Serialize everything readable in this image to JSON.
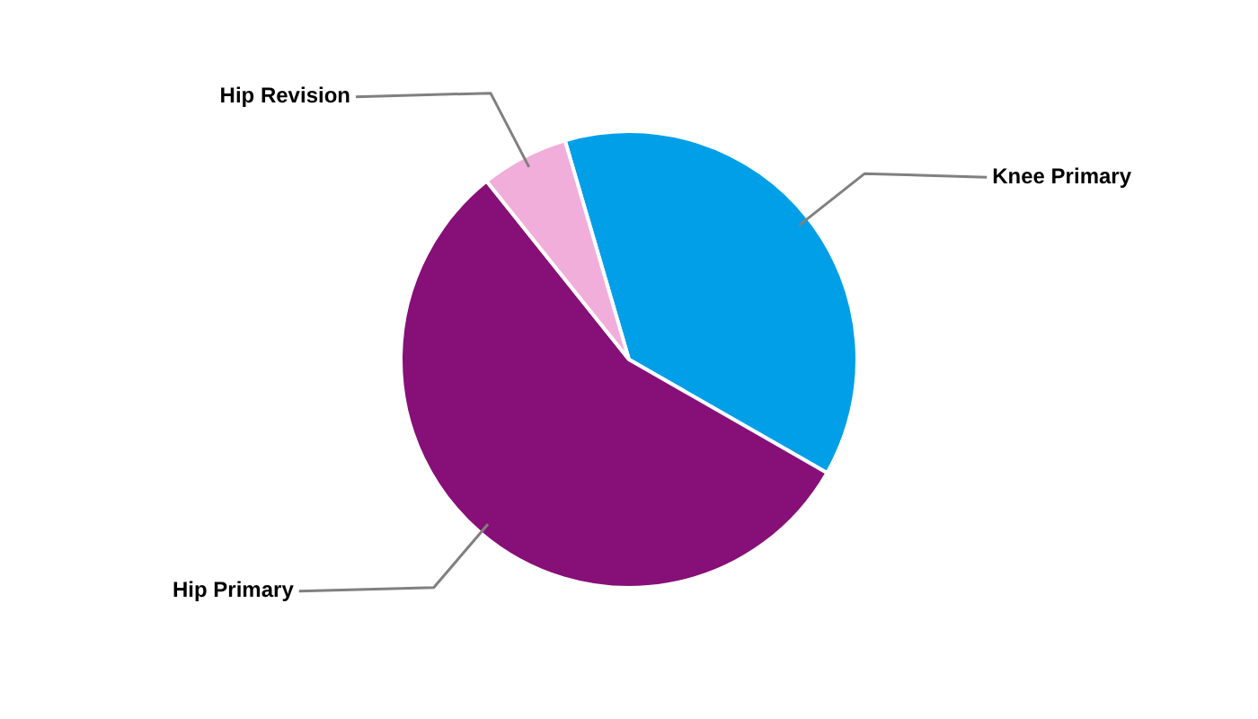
{
  "chart_data": {
    "type": "pie",
    "categories": [
      "Knee Primary",
      "Hip Primary",
      "Hip Revision"
    ],
    "values": [
      37.8,
      56.0,
      6.2
    ],
    "colors": [
      "#009fe8",
      "#870f78",
      "#f2aedb"
    ],
    "legend": false
  }
}
